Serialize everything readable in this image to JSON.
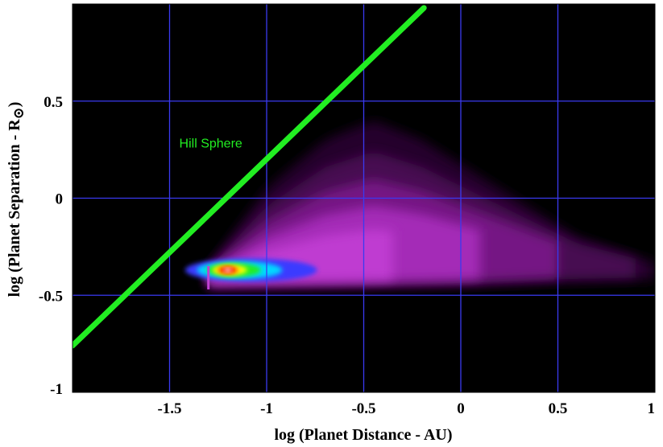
{
  "chart_data": {
    "type": "heatmap",
    "title": "",
    "xlabel": "log (Planet Distance - AU)",
    "ylabel_main": "log (Planet Separation - R",
    "ylabel_symbol": "⊙",
    "ylabel_close": ")",
    "xlim": [
      -2,
      1
    ],
    "ylim": [
      -1,
      1
    ],
    "x_ticks": [
      -1.5,
      -1,
      -0.5,
      0,
      0.5,
      1
    ],
    "x_tick_labels": [
      "-1.5",
      "-1",
      "-0.5",
      "0",
      "0.5",
      "1"
    ],
    "y_ticks": [
      -1,
      -0.5,
      0,
      0.5
    ],
    "y_tick_labels": [
      "-1",
      "-0.5",
      "0",
      "0.5"
    ],
    "grid": true,
    "background_color": "#000000",
    "grid_color": "#3a3af0",
    "hill_sphere": {
      "label": "Hill Sphere",
      "color": "#22ee22",
      "line_x": [
        -2.0,
        -0.19
      ],
      "line_y": [
        -0.76,
        0.98
      ],
      "label_position": [
        -1.45,
        0.26
      ]
    },
    "density_peak": {
      "x": -1.2,
      "y": -0.37
    },
    "density_region": {
      "left_edge_x": -1.3,
      "y_range_at_left": [
        -0.47,
        -0.35
      ],
      "upper_boundary": [
        [
          -1.3,
          -0.35
        ],
        [
          -1.0,
          0.05
        ],
        [
          -0.7,
          0.3
        ],
        [
          -0.45,
          0.4
        ],
        [
          -0.2,
          0.3
        ],
        [
          0.2,
          0.05
        ],
        [
          0.6,
          -0.2
        ],
        [
          1.0,
          -0.33
        ]
      ],
      "lower_boundary": [
        [
          -1.3,
          -0.47
        ],
        [
          -0.5,
          -0.46
        ],
        [
          0.0,
          -0.45
        ],
        [
          0.5,
          -0.43
        ],
        [
          1.0,
          -0.42
        ]
      ]
    },
    "colorscale": [
      "#000000",
      "#2a0030",
      "#7a1a8a",
      "#c23fd4",
      "#3a3aff",
      "#00d8ff",
      "#22ee22",
      "#ffff00",
      "#ff9900",
      "#ff0000",
      "#ffffff"
    ]
  }
}
